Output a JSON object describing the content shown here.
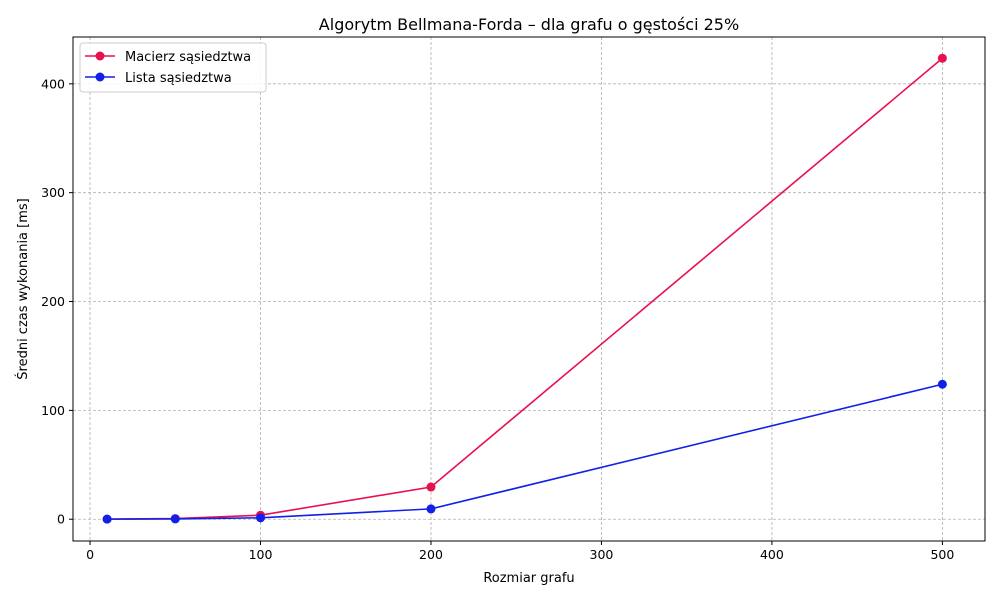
{
  "chart_data": {
    "type": "line",
    "title": "Algorytm Bellmana-Forda – dla grafu o gęstości 25%",
    "xlabel": "Rozmiar grafu",
    "ylabel": "Średni czas wykonania [ms]",
    "xlim": [
      -10,
      525
    ],
    "ylim": [
      -20,
      443
    ],
    "xticks": [
      0,
      100,
      200,
      300,
      400,
      500
    ],
    "yticks": [
      0,
      100,
      200,
      300,
      400
    ],
    "grid": true,
    "legend_position": "top-left",
    "x": [
      10,
      50,
      100,
      200,
      500
    ],
    "series": [
      {
        "name": "Macierz sąsiedztwa",
        "color": "#e8114f",
        "values": [
          0.1,
          0.6,
          3.7,
          29.6,
          423.5
        ]
      },
      {
        "name": "Lista sąsiedztwa",
        "color": "#1120e8",
        "values": [
          0.1,
          0.3,
          1.3,
          9.5,
          124.0
        ]
      }
    ]
  }
}
